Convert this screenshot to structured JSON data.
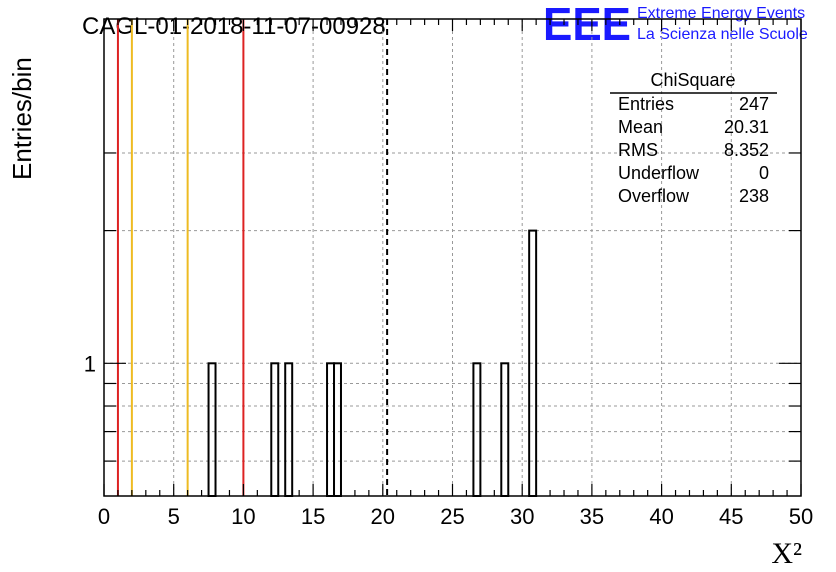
{
  "chart_data": {
    "type": "bar",
    "title": "CAGL-01-2018-11-07-00928",
    "xlabel": "X²",
    "ylabel": "Entries/bin",
    "xlim": [
      0,
      50
    ],
    "y_scale": "log",
    "x_ticks": [
      "0",
      "5",
      "10",
      "15",
      "20",
      "25",
      "30",
      "35",
      "40",
      "45",
      "50"
    ],
    "y_tick_labels": [
      "1"
    ],
    "grid": true,
    "bin_width": 0.5,
    "bins": [
      {
        "x": 7.5,
        "y": 1
      },
      {
        "x": 12.0,
        "y": 1
      },
      {
        "x": 13.0,
        "y": 1
      },
      {
        "x": 16.0,
        "y": 1
      },
      {
        "x": 16.5,
        "y": 1
      },
      {
        "x": 26.5,
        "y": 1
      },
      {
        "x": 28.5,
        "y": 1
      },
      {
        "x": 30.5,
        "y": 2
      }
    ],
    "vertical_lines": [
      {
        "x": 1,
        "color": "#dd2222",
        "style": "solid"
      },
      {
        "x": 2,
        "color": "#eebb22",
        "style": "solid"
      },
      {
        "x": 6,
        "color": "#eebb22",
        "style": "solid"
      },
      {
        "x": 10,
        "color": "#dd2222",
        "style": "solid"
      },
      {
        "x": 20.31,
        "color": "#000000",
        "style": "dashed"
      }
    ],
    "stats_box": {
      "name": "ChiSquare",
      "rows": [
        {
          "label": "Entries",
          "value": "247"
        },
        {
          "label": "Mean",
          "value": "20.31"
        },
        {
          "label": "RMS",
          "value": "8.352"
        },
        {
          "label": "Underflow",
          "value": "0"
        },
        {
          "label": "Overflow",
          "value": "238"
        }
      ]
    }
  },
  "logo": {
    "mark": "EEE",
    "line1": "Extreme Energy Events",
    "line2": "La Scienza nelle Scuole",
    "color": "#1a1aff"
  }
}
